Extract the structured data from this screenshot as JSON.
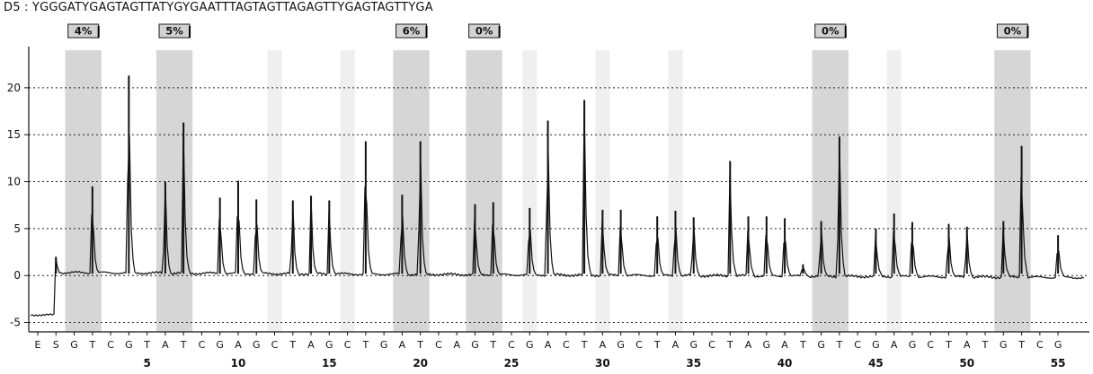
{
  "header": {
    "sequence_text": "D5 : YGGGATYGAGTAGTTATYGYGAATTTAGTAGTTAGAGTTYGAGTAGTTYGA"
  },
  "chart_data": {
    "type": "line",
    "title": "",
    "xlabel": "",
    "ylabel": "",
    "ylim": [
      -6,
      24
    ],
    "y_ticks": [
      -5,
      0,
      5,
      10,
      15,
      20
    ],
    "grid": "horizontal dotted",
    "dispensation": [
      "E",
      "S",
      "G",
      "T",
      "C",
      "G",
      "T",
      "A",
      "T",
      "C",
      "G",
      "A",
      "G",
      "C",
      "T",
      "A",
      "G",
      "C",
      "T",
      "G",
      "A",
      "T",
      "C",
      "A",
      "G",
      "T",
      "C",
      "G",
      "A",
      "C",
      "T",
      "A",
      "G",
      "C",
      "T",
      "A",
      "G",
      "C",
      "T",
      "A",
      "G",
      "A",
      "T",
      "G",
      "T",
      "C",
      "G",
      "A",
      "G",
      "C",
      "T",
      "A",
      "T",
      "G",
      "T",
      "C",
      "G"
    ],
    "position_labels": [
      {
        "label": "5",
        "pos": 5
      },
      {
        "label": "10",
        "pos": 10
      },
      {
        "label": "15",
        "pos": 15
      },
      {
        "label": "20",
        "pos": 20
      },
      {
        "label": "25",
        "pos": 25
      },
      {
        "label": "30",
        "pos": 30
      },
      {
        "label": "35",
        "pos": 35
      },
      {
        "label": "40",
        "pos": 40
      },
      {
        "label": "45",
        "pos": 45
      },
      {
        "label": "50",
        "pos": 50
      },
      {
        "label": "55",
        "pos": 55
      }
    ],
    "cpg_sites": [
      {
        "start": 2,
        "end": 3,
        "percent": "4%"
      },
      {
        "start": 7,
        "end": 8,
        "percent": "5%"
      },
      {
        "start": 20,
        "end": 21,
        "percent": "6%"
      },
      {
        "start": 24,
        "end": 25,
        "percent": "0%"
      },
      {
        "start": 43,
        "end": 44,
        "percent": "0%"
      },
      {
        "start": 53,
        "end": 54,
        "percent": "0%"
      }
    ],
    "light_columns": [
      13,
      17,
      27,
      31,
      35,
      47
    ],
    "baseline": {
      "start": -4.2,
      "step_up": 0.3
    },
    "peaks": [
      {
        "pos": 1,
        "value": 2.0
      },
      {
        "pos": 3,
        "value": 9.5
      },
      {
        "pos": 5,
        "value": 21.3
      },
      {
        "pos": 7,
        "value": 10.0
      },
      {
        "pos": 8,
        "value": 16.3
      },
      {
        "pos": 10,
        "value": 8.3
      },
      {
        "pos": 11,
        "value": 10.1
      },
      {
        "pos": 12,
        "value": 8.1
      },
      {
        "pos": 14,
        "value": 8.0
      },
      {
        "pos": 15,
        "value": 8.5
      },
      {
        "pos": 16,
        "value": 8.0
      },
      {
        "pos": 18,
        "value": 14.3
      },
      {
        "pos": 20,
        "value": 8.6
      },
      {
        "pos": 21,
        "value": 14.3
      },
      {
        "pos": 24,
        "value": 7.6
      },
      {
        "pos": 25,
        "value": 7.8
      },
      {
        "pos": 27,
        "value": 7.2
      },
      {
        "pos": 28,
        "value": 16.5
      },
      {
        "pos": 30,
        "value": 18.7
      },
      {
        "pos": 31,
        "value": 7.0
      },
      {
        "pos": 32,
        "value": 7.0
      },
      {
        "pos": 34,
        "value": 6.3
      },
      {
        "pos": 35,
        "value": 6.9
      },
      {
        "pos": 36,
        "value": 6.2
      },
      {
        "pos": 38,
        "value": 12.2
      },
      {
        "pos": 39,
        "value": 6.3
      },
      {
        "pos": 40,
        "value": 6.3
      },
      {
        "pos": 41,
        "value": 6.1
      },
      {
        "pos": 42,
        "value": 1.2
      },
      {
        "pos": 43,
        "value": 5.8
      },
      {
        "pos": 44,
        "value": 14.8
      },
      {
        "pos": 46,
        "value": 5.0
      },
      {
        "pos": 47,
        "value": 6.6
      },
      {
        "pos": 48,
        "value": 5.7
      },
      {
        "pos": 50,
        "value": 5.5
      },
      {
        "pos": 51,
        "value": 5.2
      },
      {
        "pos": 53,
        "value": 5.8
      },
      {
        "pos": 54,
        "value": 13.8
      },
      {
        "pos": 56,
        "value": 4.3
      }
    ]
  }
}
